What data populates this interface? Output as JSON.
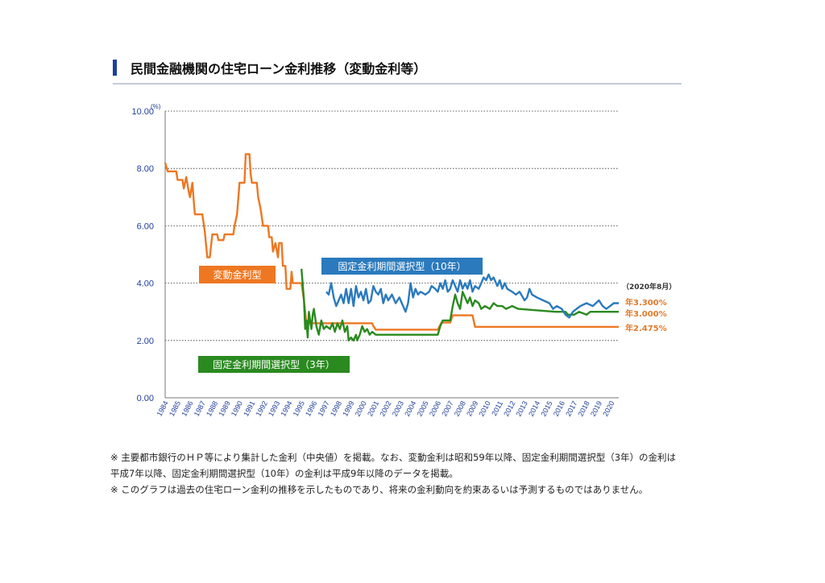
{
  "page": {
    "title": "民間金融機関の住宅ローン金利推移（変動金利等）"
  },
  "notes": [
    "※ 主要都市銀行のＨＰ等により集計した金利（中央値）を掲載。なお、変動金利は昭和59年以降、固定金利期間選択型（3年）の金利は平成7年以降、固定金利期間選択型（10年）の金利は平成9年以降のデータを掲載。",
    "※ このグラフは過去の住宅ローン金利の推移を示したものであり、将来の金利動向を約束あるいは予測するものではありません。"
  ],
  "chart_data": {
    "type": "line",
    "title": "",
    "ylabel": "(%)",
    "xlabel": "",
    "xlim": [
      1984,
      2020.6
    ],
    "ylim": [
      0,
      10
    ],
    "y_ticks": [
      "0.00",
      "2.00",
      "4.00",
      "6.00",
      "8.00",
      "10.00"
    ],
    "x_ticks": [
      "1984",
      "1985",
      "1986",
      "1987",
      "1988",
      "1989",
      "1990",
      "1991",
      "1992",
      "1993",
      "1994",
      "1995",
      "1996",
      "1997",
      "1998",
      "1999",
      "2000",
      "2001",
      "2002",
      "2003",
      "2004",
      "2005",
      "2006",
      "2007",
      "2008",
      "2009",
      "2010",
      "2011",
      "2012",
      "2013",
      "2014",
      "2015",
      "2016",
      "2017",
      "2018",
      "2019",
      "2020"
    ],
    "grid": "horizontal-dotted",
    "end_label_header": "（2020年8月）",
    "series": [
      {
        "name": "変動金利型",
        "color": "#ee7722",
        "end_label": "年2.475%",
        "points": [
          [
            1984,
            8.2
          ],
          [
            1984.2,
            7.9
          ],
          [
            1984.9,
            7.9
          ],
          [
            1985,
            7.6
          ],
          [
            1985.4,
            7.6
          ],
          [
            1985.5,
            7.3
          ],
          [
            1985.7,
            7.7
          ],
          [
            1985.9,
            7.2
          ],
          [
            1986,
            7.0
          ],
          [
            1986.2,
            7.5
          ],
          [
            1986.3,
            6.9
          ],
          [
            1986.4,
            6.4
          ],
          [
            1987,
            6.4
          ],
          [
            1987.2,
            5.8
          ],
          [
            1987.4,
            4.9
          ],
          [
            1987.6,
            4.9
          ],
          [
            1987.8,
            5.7
          ],
          [
            1988.2,
            5.7
          ],
          [
            1988.3,
            5.5
          ],
          [
            1988.7,
            5.5
          ],
          [
            1988.8,
            5.7
          ],
          [
            1989.5,
            5.7
          ],
          [
            1989.6,
            6.0
          ],
          [
            1989.8,
            6.4
          ],
          [
            1990,
            7.5
          ],
          [
            1990.4,
            7.5
          ],
          [
            1990.5,
            8.5
          ],
          [
            1990.8,
            8.5
          ],
          [
            1990.9,
            7.8
          ],
          [
            1991,
            7.5
          ],
          [
            1991.4,
            7.5
          ],
          [
            1991.5,
            7.0
          ],
          [
            1991.7,
            6.6
          ],
          [
            1991.9,
            6.0
          ],
          [
            1992.3,
            6.0
          ],
          [
            1992.4,
            5.6
          ],
          [
            1992.6,
            5.6
          ],
          [
            1992.7,
            5.1
          ],
          [
            1992.9,
            5.4
          ],
          [
            1993.1,
            4.9
          ],
          [
            1993.2,
            5.4
          ],
          [
            1993.4,
            5.4
          ],
          [
            1993.5,
            4.6
          ],
          [
            1993.7,
            4.6
          ],
          [
            1993.8,
            3.8
          ],
          [
            1994.1,
            3.8
          ],
          [
            1994.2,
            4.4
          ],
          [
            1994.3,
            4.0
          ],
          [
            1995,
            4.0
          ],
          [
            1995.2,
            3.4
          ],
          [
            1995.4,
            2.6
          ],
          [
            2000.7,
            2.6
          ],
          [
            2000.8,
            2.5
          ],
          [
            2001,
            2.375
          ],
          [
            2006,
            2.375
          ],
          [
            2006.3,
            2.625
          ],
          [
            2007,
            2.625
          ],
          [
            2007.2,
            2.875
          ],
          [
            2008.8,
            2.875
          ],
          [
            2009,
            2.475
          ],
          [
            2020.6,
            2.475
          ]
        ]
      },
      {
        "name": "固定金利期間選択型（3年）",
        "color": "#2a8a1f",
        "end_label": "年3.000%",
        "points": [
          [
            1995,
            4.5
          ],
          [
            1995.2,
            3.4
          ],
          [
            1995.3,
            2.4
          ],
          [
            1995.4,
            2.7
          ],
          [
            1995.5,
            2.1
          ],
          [
            1995.6,
            3.0
          ],
          [
            1995.8,
            2.4
          ],
          [
            1995.9,
            2.9
          ],
          [
            1996,
            3.1
          ],
          [
            1996.2,
            2.5
          ],
          [
            1996.4,
            2.2
          ],
          [
            1996.6,
            2.7
          ],
          [
            1996.8,
            2.4
          ],
          [
            1997,
            2.5
          ],
          [
            1997.3,
            2.4
          ],
          [
            1997.5,
            2.6
          ],
          [
            1997.7,
            2.3
          ],
          [
            1997.9,
            2.6
          ],
          [
            1998.1,
            2.4
          ],
          [
            1998.3,
            2.7
          ],
          [
            1998.5,
            2.3
          ],
          [
            1998.7,
            2.5
          ],
          [
            1998.8,
            2.0
          ],
          [
            1999,
            2.1
          ],
          [
            1999.2,
            2.0
          ],
          [
            1999.4,
            2.2
          ],
          [
            1999.5,
            2.0
          ],
          [
            1999.7,
            2.2
          ],
          [
            1999.9,
            2.5
          ],
          [
            2000.1,
            2.3
          ],
          [
            2000.3,
            2.4
          ],
          [
            2000.5,
            2.2
          ],
          [
            2000.7,
            2.3
          ],
          [
            2001,
            2.2
          ],
          [
            2006,
            2.2
          ],
          [
            2006.2,
            2.5
          ],
          [
            2006.4,
            2.7
          ],
          [
            2007,
            2.7
          ],
          [
            2007.2,
            3.2
          ],
          [
            2007.4,
            3.6
          ],
          [
            2007.6,
            3.3
          ],
          [
            2007.8,
            3.1
          ],
          [
            2008,
            3.7
          ],
          [
            2008.2,
            3.5
          ],
          [
            2008.4,
            3.3
          ],
          [
            2008.6,
            3.5
          ],
          [
            2008.8,
            3.2
          ],
          [
            2009,
            3.4
          ],
          [
            2009.3,
            3.3
          ],
          [
            2009.5,
            3.1
          ],
          [
            2009.8,
            3.2
          ],
          [
            2010.2,
            3.1
          ],
          [
            2010.5,
            3.3
          ],
          [
            2010.8,
            3.2
          ],
          [
            2011.2,
            3.2
          ],
          [
            2011.5,
            3.1
          ],
          [
            2012,
            3.2
          ],
          [
            2012.5,
            3.1
          ],
          [
            2015.5,
            3.0
          ],
          [
            2016.3,
            3.0
          ],
          [
            2016.5,
            2.9
          ],
          [
            2017,
            2.9
          ],
          [
            2017.4,
            3.0
          ],
          [
            2018,
            2.9
          ],
          [
            2018.3,
            3.0
          ],
          [
            2020.6,
            3.0
          ]
        ]
      },
      {
        "name": "固定金利期間選択型（10年）",
        "color": "#2a7abd",
        "end_label": "年3.300%",
        "points": [
          [
            1997,
            3.7
          ],
          [
            1997.2,
            3.6
          ],
          [
            1997.4,
            4.0
          ],
          [
            1997.6,
            3.5
          ],
          [
            1997.8,
            3.2
          ],
          [
            1998,
            3.4
          ],
          [
            1998.2,
            3.6
          ],
          [
            1998.4,
            3.3
          ],
          [
            1998.6,
            3.8
          ],
          [
            1998.8,
            3.3
          ],
          [
            1999,
            3.8
          ],
          [
            1999.2,
            3.2
          ],
          [
            1999.4,
            3.9
          ],
          [
            1999.6,
            3.5
          ],
          [
            1999.8,
            3.7
          ],
          [
            2000,
            3.4
          ],
          [
            2000.2,
            3.8
          ],
          [
            2000.4,
            3.3
          ],
          [
            2000.6,
            3.4
          ],
          [
            2000.8,
            3.9
          ],
          [
            2001,
            3.7
          ],
          [
            2001.2,
            3.6
          ],
          [
            2001.4,
            3.8
          ],
          [
            2001.6,
            3.3
          ],
          [
            2001.8,
            3.6
          ],
          [
            2002,
            3.4
          ],
          [
            2002.3,
            3.6
          ],
          [
            2002.6,
            3.3
          ],
          [
            2002.9,
            3.5
          ],
          [
            2003.2,
            3.2
          ],
          [
            2003.4,
            3.0
          ],
          [
            2003.6,
            3.3
          ],
          [
            2003.8,
            4.0
          ],
          [
            2004,
            3.5
          ],
          [
            2004.2,
            3.8
          ],
          [
            2004.4,
            3.6
          ],
          [
            2004.6,
            3.7
          ],
          [
            2005,
            3.6
          ],
          [
            2005.3,
            3.7
          ],
          [
            2005.5,
            3.9
          ],
          [
            2005.8,
            3.8
          ],
          [
            2006,
            3.7
          ],
          [
            2006.2,
            4.0
          ],
          [
            2006.4,
            3.8
          ],
          [
            2006.6,
            4.1
          ],
          [
            2006.8,
            3.7
          ],
          [
            2007,
            3.8
          ],
          [
            2007.2,
            4.1
          ],
          [
            2007.4,
            3.9
          ],
          [
            2007.6,
            3.7
          ],
          [
            2007.8,
            4.1
          ],
          [
            2008,
            3.8
          ],
          [
            2008.2,
            4.0
          ],
          [
            2008.4,
            3.8
          ],
          [
            2008.6,
            4.1
          ],
          [
            2008.8,
            3.7
          ],
          [
            2009,
            3.9
          ],
          [
            2009.3,
            3.8
          ],
          [
            2009.5,
            4.0
          ],
          [
            2009.7,
            4.2
          ],
          [
            2009.9,
            4.1
          ],
          [
            2010.1,
            4.3
          ],
          [
            2010.3,
            4.1
          ],
          [
            2010.5,
            4.2
          ],
          [
            2010.8,
            3.9
          ],
          [
            2011,
            4.1
          ],
          [
            2011.2,
            3.8
          ],
          [
            2011.4,
            4.0
          ],
          [
            2011.6,
            3.8
          ],
          [
            2012,
            3.7
          ],
          [
            2012.3,
            3.6
          ],
          [
            2012.6,
            3.7
          ],
          [
            2013,
            3.4
          ],
          [
            2013.2,
            3.5
          ],
          [
            2013.4,
            3.8
          ],
          [
            2013.6,
            3.6
          ],
          [
            2014,
            3.5
          ],
          [
            2014.5,
            3.4
          ],
          [
            2015,
            3.3
          ],
          [
            2015.3,
            3.1
          ],
          [
            2015.6,
            3.2
          ],
          [
            2016,
            3.1
          ],
          [
            2016.3,
            2.9
          ],
          [
            2016.6,
            2.8
          ],
          [
            2016.9,
            3.0
          ],
          [
            2017.2,
            3.1
          ],
          [
            2017.5,
            3.2
          ],
          [
            2018,
            3.3
          ],
          [
            2018.5,
            3.2
          ],
          [
            2019,
            3.4
          ],
          [
            2019.3,
            3.2
          ],
          [
            2019.6,
            3.1
          ],
          [
            2019.9,
            3.2
          ],
          [
            2020.2,
            3.3
          ],
          [
            2020.6,
            3.3
          ]
        ]
      }
    ]
  }
}
